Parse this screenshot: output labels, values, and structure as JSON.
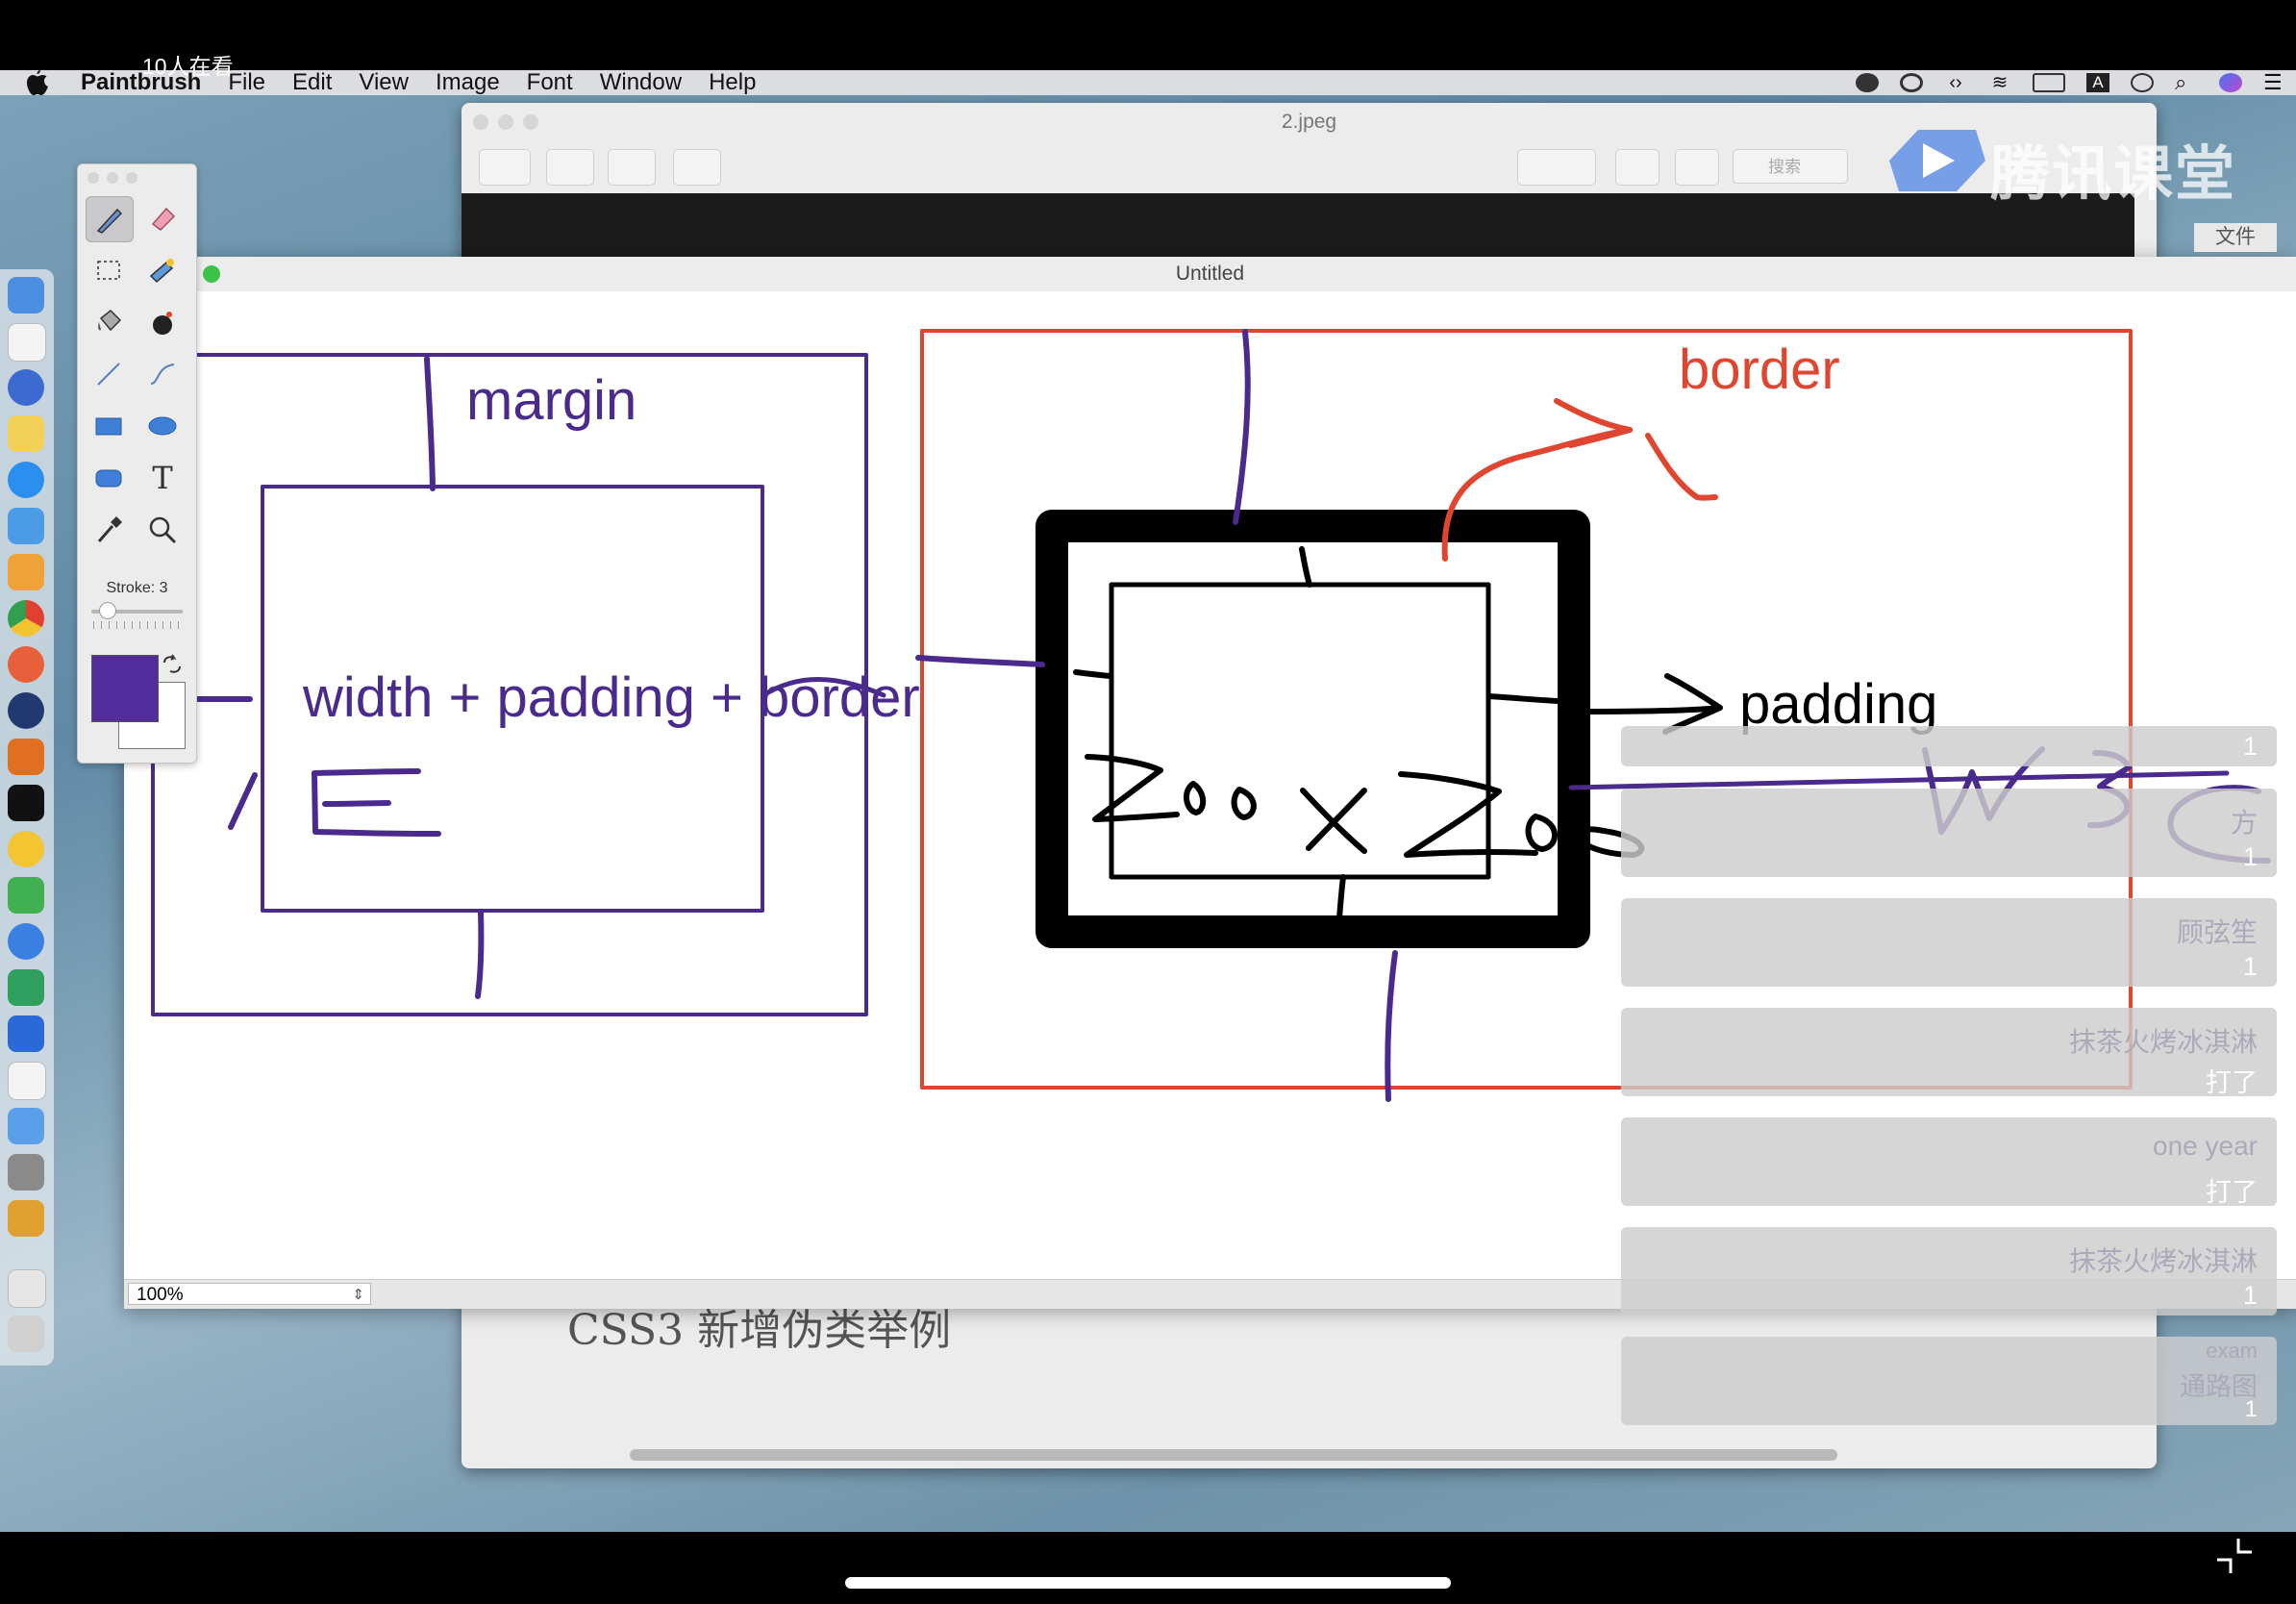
{
  "overlay": {
    "viewer_count": "10人在看"
  },
  "menubar": {
    "app_name": "Paintbrush",
    "items": [
      "File",
      "Edit",
      "View",
      "Image",
      "Font",
      "Window",
      "Help"
    ]
  },
  "preview_window": {
    "title": "2.jpeg",
    "search_placeholder": "搜索",
    "lower_text": "CSS3 新增伪类举例",
    "file_tab": "文件"
  },
  "watermark": {
    "text": "腾讯课堂"
  },
  "paint_window": {
    "title": "Untitled",
    "zoom": "100%"
  },
  "tools": {
    "stroke_label": "Stroke: 3",
    "stroke_value": 3,
    "foreground_color": "#522d99",
    "background_color": "#ffffff",
    "items": [
      "brush-icon",
      "eraser-icon",
      "select-rect-icon",
      "select-lasso-icon",
      "paint-bucket-icon",
      "spray-icon",
      "line-icon",
      "curve-icon",
      "rectangle-icon",
      "ellipse-icon",
      "rounded-rect-icon",
      "text-icon",
      "eyedropper-icon",
      "magnifier-icon"
    ]
  },
  "canvas_text": {
    "margin": "margin",
    "width_formula": "width + padding + border",
    "border": "border",
    "padding": "padding"
  },
  "chat": [
    {
      "name": "",
      "msg": "1"
    },
    {
      "name": "方",
      "msg": "1"
    },
    {
      "name": "顾弦笙",
      "msg": "1"
    },
    {
      "name": "抹茶火烤冰淇淋",
      "msg": "打了"
    },
    {
      "name": "one year",
      "msg": "打了"
    },
    {
      "name": "抹茶火烤冰淇淋",
      "msg": "1"
    },
    {
      "name": "exam",
      "msg": "通路图"
    },
    {
      "name": "",
      "msg": "1"
    }
  ],
  "colors": {
    "purple_ink": "#4a2a8c",
    "red_ink": "#e0452f",
    "black_ink": "#000000"
  }
}
